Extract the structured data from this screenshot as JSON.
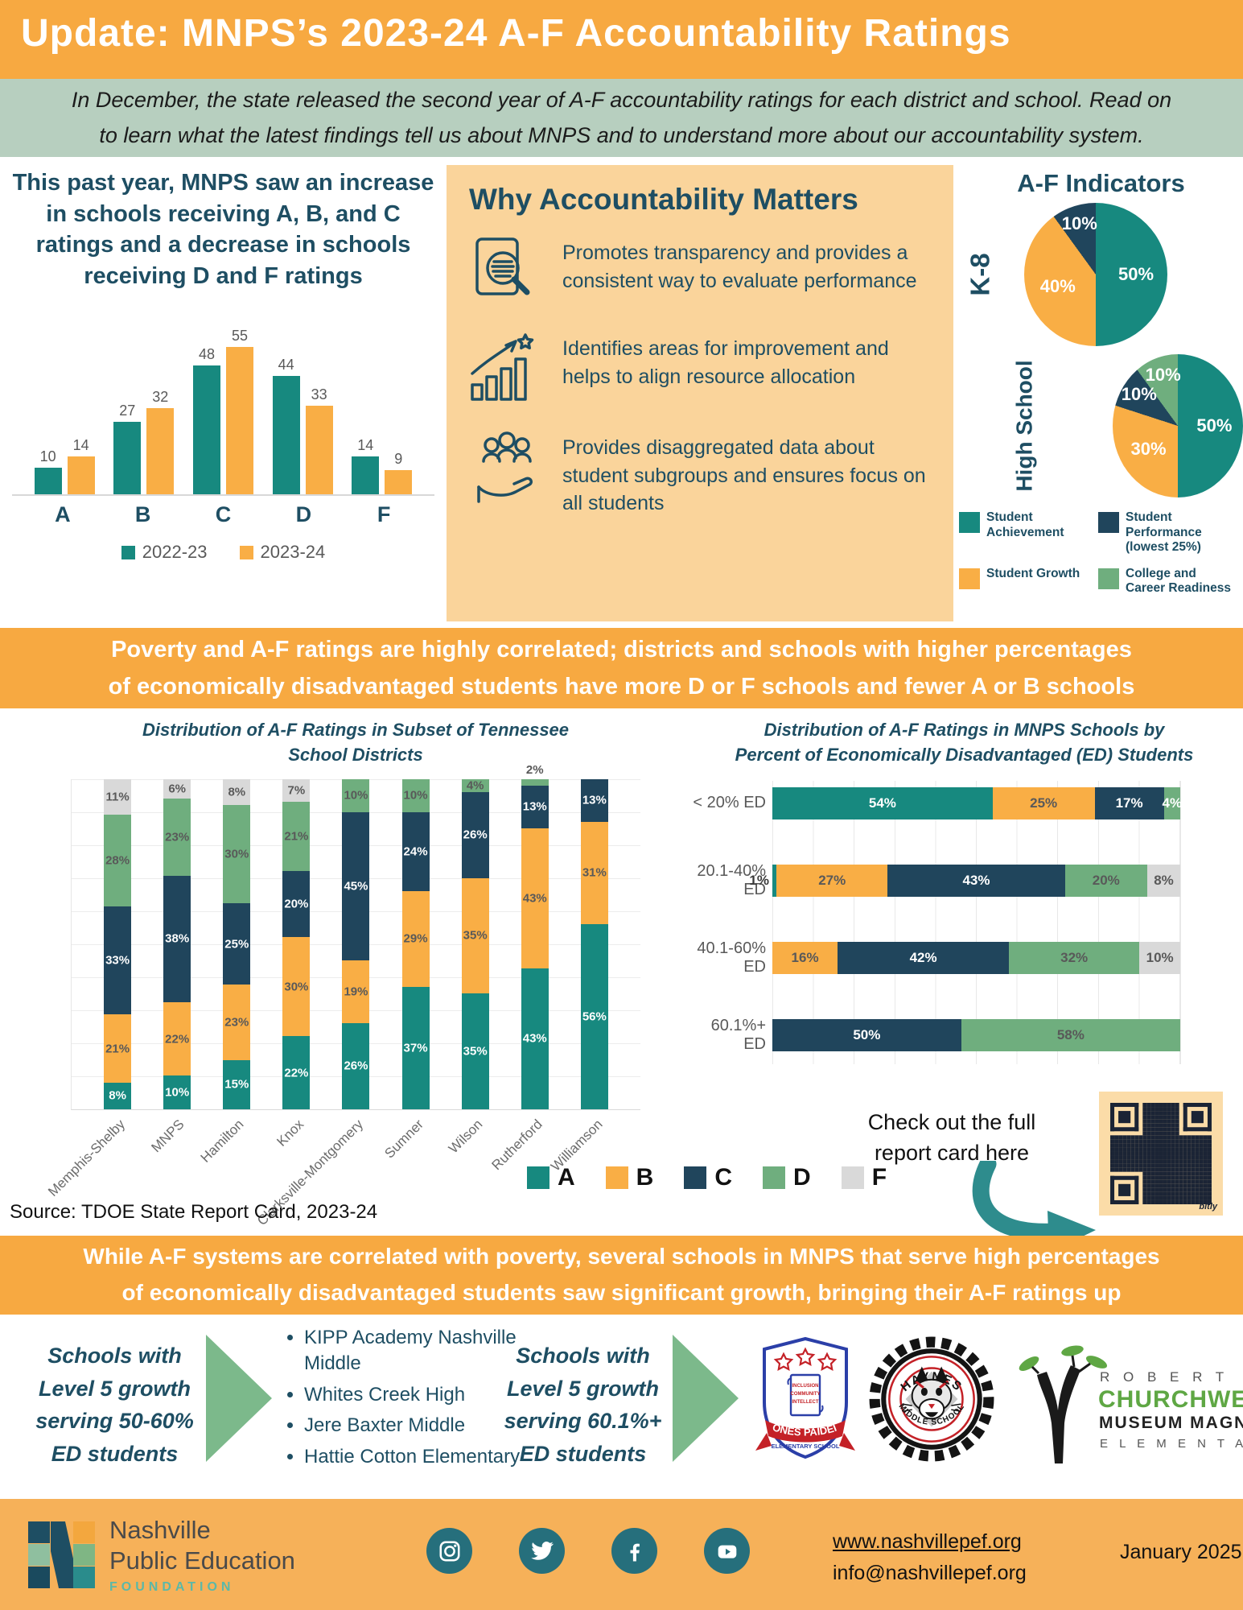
{
  "colors": {
    "header_orange": "#F7A941",
    "intro_green": "#B7CFBF",
    "navy": "#1E4E63",
    "teal": "#17897F",
    "orange": "#F9AE45",
    "dark_navy": "#20455C",
    "green": "#6FAE7E",
    "gray": "#D9D9D9",
    "why_box_bg": "#FAD49B",
    "qr_bg": "#FBDCA8",
    "qr_fg": "#1B2435",
    "footer_orange": "#F6B159",
    "social_teal": "#266F7C",
    "arrow_green": "#7CB98B",
    "arrow_teal": "#2E8C8D",
    "label_gray": "#595959"
  },
  "header": {
    "title": "Update: MNPS’s 2023-24 A-F Accountability Ratings"
  },
  "intro": {
    "text": "In December, the state released the second year of A-F accountability ratings for each district and school. Read on\nto learn what the latest findings tell us about MNPS and to understand more about our accountability system."
  },
  "why_box": {
    "title": "Why Accountability Matters",
    "bullets": [
      {
        "icon": "document-magnifier-icon",
        "text": "Promotes transparency and provides a consistent way to evaluate performance"
      },
      {
        "icon": "growth-chart-icon",
        "text": "Identifies areas for improvement and helps to align resource allocation"
      },
      {
        "icon": "people-hand-icon",
        "text": "Provides disaggregated data about student subgroups and ensures focus on all students"
      }
    ]
  },
  "indicators": {
    "title": "A-F Indicators",
    "legend": [
      {
        "label": "Student\nAchievement",
        "color": "#17897F"
      },
      {
        "label": "Student\nPerformance\n(lowest 25%)",
        "color": "#20455C"
      },
      {
        "label": "Student Growth",
        "color": "#F9AE45"
      },
      {
        "label": "College and\nCareer Readiness",
        "color": "#6FAE7E"
      }
    ]
  },
  "poverty_banner": "Poverty and A-F ratings are highly correlated; districts and schools with higher percentages\nof economically disadvantaged students have more D or F schools and fewer A or B schools",
  "growth_banner": "While A-F systems are correlated with poverty, several schools in MNPS that serve high percentages\nof economically disadvantaged students saw significant growth, bringing their A-F ratings up",
  "rating_legend": [
    {
      "label": "A",
      "color": "#17897F"
    },
    {
      "label": "B",
      "color": "#F9AE45"
    },
    {
      "label": "C",
      "color": "#20455C"
    },
    {
      "label": "D",
      "color": "#6FAE7E"
    },
    {
      "label": "F",
      "color": "#D9D9D9"
    }
  ],
  "qr_caption": "Check out the full\nreport card here",
  "qr_brand": "bitly",
  "source": "Source: TDOE State Report Card, 2023-24",
  "growth_section": {
    "left_heading": "Schools with\nLevel 5 growth\nserving 50-60%\nED students",
    "schools": [
      "KIPP Academy Nashville Middle",
      "Whites Creek High",
      "Jere Baxter Middle",
      "Hattie Cotton Elementary"
    ],
    "right_heading": "Schools with\nLevel 5 growth\nserving 60.1%+\nED students",
    "logos": [
      {
        "name": "jones-paideia",
        "lines": [
          "JONES PAIDEIA",
          "ELEMENTARY SCHOOL"
        ],
        "scroll": [
          "INCLUSION",
          "COMMUNITY",
          "INTELLECT"
        ]
      },
      {
        "name": "haynes",
        "lines": [
          "HAYNES",
          "MIDDLE SCHOOL"
        ]
      },
      {
        "name": "churchwell",
        "lines": [
          "R O B E R T",
          "CHURCHWELL",
          "MUSEUM MAGNET",
          "E L E M E N T A R Y"
        ]
      }
    ]
  },
  "footer": {
    "org_line1": "Nashville",
    "org_line2": "Public Education",
    "org_line3": "FOUNDATION",
    "website": "www.nashvillepef.org",
    "email": "info@nashvillepef.org",
    "date": "January 2025",
    "social": [
      "instagram",
      "twitter",
      "facebook",
      "youtube"
    ]
  },
  "chart_data": [
    {
      "id": "mnps_rating_change",
      "type": "bar",
      "title": "This past year, MNPS saw an increase in schools receiving A, B, and C ratings and a decrease in schools receiving D and F ratings",
      "categories": [
        "A",
        "B",
        "C",
        "D",
        "F"
      ],
      "series": [
        {
          "name": "2022-23",
          "color": "#17897F",
          "values": [
            10,
            27,
            48,
            44,
            14
          ]
        },
        {
          "name": "2023-24",
          "color": "#F9AE45",
          "values": [
            14,
            32,
            55,
            33,
            9
          ]
        }
      ],
      "ylim": [
        0,
        60
      ],
      "grid": false,
      "legend_position": "bottom"
    },
    {
      "id": "af_indicators_k8",
      "type": "pie",
      "group_label": "K-8",
      "slices": [
        {
          "label": "Student Achievement",
          "value": 50,
          "color": "#17897F"
        },
        {
          "label": "Student Growth",
          "value": 40,
          "color": "#F9AE45"
        },
        {
          "label": "Student Performance (lowest 25%)",
          "value": 10,
          "color": "#20455C"
        }
      ]
    },
    {
      "id": "af_indicators_high_school",
      "type": "pie",
      "group_label": "High School",
      "slices": [
        {
          "label": "Student Achievement",
          "value": 50,
          "color": "#17897F"
        },
        {
          "label": "Student Growth",
          "value": 30,
          "color": "#F9AE45"
        },
        {
          "label": "Student Performance (lowest 25%)",
          "value": 10,
          "color": "#20455C"
        },
        {
          "label": "College and Career Readiness",
          "value": 10,
          "color": "#6FAE7E"
        }
      ]
    },
    {
      "id": "district_distribution",
      "type": "bar",
      "stacked": true,
      "orientation": "vertical",
      "title": "Distribution of A-F Ratings in Subset of Tennessee\nSchool Districts",
      "grade_colors": {
        "A": "#17897F",
        "B": "#F9AE45",
        "C": "#20455C",
        "D": "#6FAE7E",
        "F": "#D9D9D9"
      },
      "bars": [
        {
          "category": "Memphis-Shelby",
          "segments": [
            {
              "grade": "A",
              "value": 8
            },
            {
              "grade": "B",
              "value": 21
            },
            {
              "grade": "C",
              "value": 33
            },
            {
              "grade": "D",
              "value": 28
            },
            {
              "grade": "F",
              "value": 11
            }
          ]
        },
        {
          "category": "MNPS",
          "segments": [
            {
              "grade": "A",
              "value": 10
            },
            {
              "grade": "B",
              "value": 22
            },
            {
              "grade": "C",
              "value": 38
            },
            {
              "grade": "D",
              "value": 23
            },
            {
              "grade": "F",
              "value": 6
            }
          ]
        },
        {
          "category": "Hamilton",
          "segments": [
            {
              "grade": "A",
              "value": 15
            },
            {
              "grade": "B",
              "value": 23
            },
            {
              "grade": "C",
              "value": 25
            },
            {
              "grade": "D",
              "value": 30
            },
            {
              "grade": "F",
              "value": 8
            }
          ]
        },
        {
          "category": "Knox",
          "segments": [
            {
              "grade": "A",
              "value": 22
            },
            {
              "grade": "B",
              "value": 30
            },
            {
              "grade": "C",
              "value": 20
            },
            {
              "grade": "D",
              "value": 21
            },
            {
              "grade": "F",
              "value": 7
            }
          ]
        },
        {
          "category": "Clarksville-Montgomery",
          "segments": [
            {
              "grade": "A",
              "value": 26
            },
            {
              "grade": "B",
              "value": 19
            },
            {
              "grade": "C",
              "value": 45
            },
            {
              "grade": "D",
              "value": 10
            }
          ]
        },
        {
          "category": "Sumner",
          "segments": [
            {
              "grade": "A",
              "value": 37
            },
            {
              "grade": "B",
              "value": 29
            },
            {
              "grade": "C",
              "value": 24
            },
            {
              "grade": "D",
              "value": 10
            }
          ]
        },
        {
          "category": "Wilson",
          "segments": [
            {
              "grade": "A",
              "value": 35
            },
            {
              "grade": "B",
              "value": 35
            },
            {
              "grade": "C",
              "value": 26
            },
            {
              "grade": "D",
              "value": 4
            }
          ]
        },
        {
          "category": "Rutherford",
          "segments": [
            {
              "grade": "A",
              "value": 43
            },
            {
              "grade": "B",
              "value": 43
            },
            {
              "grade": "C",
              "value": 13
            },
            {
              "grade": "D",
              "value": 2,
              "outside": true
            }
          ]
        },
        {
          "category": "Williamson",
          "segments": [
            {
              "grade": "A",
              "value": 56
            },
            {
              "grade": "B",
              "value": 31
            },
            {
              "grade": "C",
              "value": 13
            }
          ]
        }
      ]
    },
    {
      "id": "ed_distribution",
      "type": "bar",
      "stacked": true,
      "orientation": "horizontal",
      "title": "Distribution of A-F Ratings in MNPS Schools by\nPercent of Economically Disadvantaged (ED) Students",
      "grade_colors": {
        "A": "#17897F",
        "B": "#F9AE45",
        "C": "#20455C",
        "D": "#6FAE7E",
        "F": "#D9D9D9"
      },
      "bars": [
        {
          "category": "< 20% ED",
          "segments": [
            {
              "grade": "A",
              "value": 54
            },
            {
              "grade": "B",
              "value": 25
            },
            {
              "grade": "C",
              "value": 17
            },
            {
              "grade": "D",
              "value": 4,
              "white_label": true
            }
          ]
        },
        {
          "category": "20.1-40% ED",
          "segments": [
            {
              "grade": "A",
              "value": 1,
              "outside": true
            },
            {
              "grade": "B",
              "value": 27
            },
            {
              "grade": "C",
              "value": 43
            },
            {
              "grade": "D",
              "value": 20
            },
            {
              "grade": "F",
              "value": 8
            }
          ]
        },
        {
          "category": "40.1-60% ED",
          "segments": [
            {
              "grade": "B",
              "value": 16
            },
            {
              "grade": "C",
              "value": 42
            },
            {
              "grade": "D",
              "value": 32
            },
            {
              "grade": "F",
              "value": 10
            }
          ]
        },
        {
          "category": "60.1%+ ED",
          "segments": [
            {
              "grade": "C",
              "value": 50
            },
            {
              "grade": "D",
              "value": 58
            }
          ]
        }
      ]
    }
  ]
}
